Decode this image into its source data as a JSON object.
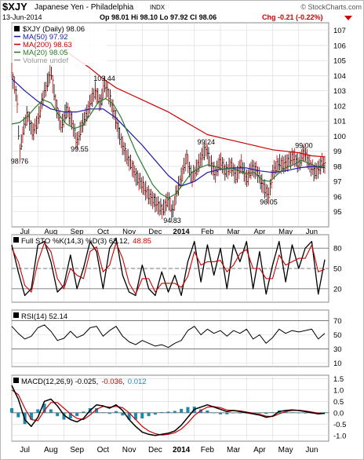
{
  "header": {
    "symbol": "$XJY",
    "name": "Japanese Yen - Philadelphia",
    "exchange": "INDX",
    "source": "© StockCharts.com",
    "date": "13-Jun-2014",
    "ohlc": "Op 98.01  Hi 98.10  Lo 97.92  Cl 98.06",
    "change": "Chg -0.21 (-0.22%)",
    "change_color": "#cc0000"
  },
  "colors": {
    "price": "#000000",
    "ma50": "#1a1aaa",
    "ma200": "#cc0000",
    "ma20": "#2a7a2a",
    "sto_k": "#000000",
    "sto_d": "#cc0000",
    "rsi": "#000000",
    "macd": "#000000",
    "macd_signal": "#cc0000",
    "histogram": "#1f8ab0",
    "grid": "#d8d8d8",
    "panel_border": "#888888"
  },
  "chart_data": [
    {
      "type": "line",
      "panel": "price",
      "title": "$XJY (Daily) 98.06",
      "legend": [
        {
          "name": "$XJY (Daily) 98.06",
          "marker": "black-square"
        },
        {
          "name": "MA(50) 97.92",
          "color": "#1a1aaa"
        },
        {
          "name": "MA(200) 98.63",
          "color": "#cc0000"
        },
        {
          "name": "MA(20) 98.05",
          "color": "#2a7a2a"
        },
        {
          "name": "Volume undef",
          "color": "#999999"
        }
      ],
      "legend_position": "top-left",
      "ylim": [
        94,
        107.5
      ],
      "y_ticks": [
        95,
        96,
        97,
        98,
        99,
        100,
        101,
        102,
        103,
        104,
        105,
        106,
        107
      ],
      "x_labels": [
        "Jul",
        "Aug",
        "Sep",
        "Oct",
        "Nov",
        "Dec",
        "2014",
        "Feb",
        "Mar",
        "Apr",
        "May",
        "Jun"
      ],
      "x_label_pos": [
        0.5,
        1.5,
        2.5,
        3.5,
        4.5,
        5.5,
        6.5,
        7.5,
        8.5,
        9.5,
        10.5,
        11.5
      ],
      "x_range": [
        0,
        12.15
      ],
      "grid": true,
      "annotations": [
        {
          "text": "103.44",
          "x": 3.55,
          "y": 103.44,
          "anchor": "above"
        },
        {
          "text": "98.76",
          "x": 0.3,
          "y": 98.76,
          "anchor": "below"
        },
        {
          "text": "99.55",
          "x": 2.6,
          "y": 99.55,
          "anchor": "below"
        },
        {
          "text": "94.83",
          "x": 6.15,
          "y": 94.83,
          "anchor": "below"
        },
        {
          "text": "99.24",
          "x": 7.45,
          "y": 99.24,
          "anchor": "above"
        },
        {
          "text": "96.05",
          "x": 9.85,
          "y": 96.05,
          "anchor": "below"
        },
        {
          "text": "99.00",
          "x": 11.2,
          "y": 99.0,
          "anchor": "above"
        }
      ],
      "series": [
        {
          "name": "$XJY (Daily) 98.06",
          "key": "price",
          "x": [
            0.0,
            0.2,
            0.3,
            0.45,
            0.6,
            0.8,
            1.0,
            1.2,
            1.5,
            1.7,
            1.9,
            2.1,
            2.3,
            2.5,
            2.7,
            2.9,
            3.0,
            3.2,
            3.4,
            3.55,
            3.75,
            4.0,
            4.2,
            4.4,
            4.6,
            4.8,
            5.0,
            5.2,
            5.4,
            5.6,
            5.8,
            6.0,
            6.15,
            6.3,
            6.5,
            6.7,
            6.9,
            7.1,
            7.3,
            7.45,
            7.6,
            7.8,
            8.0,
            8.2,
            8.4,
            8.6,
            8.8,
            9.0,
            9.2,
            9.4,
            9.6,
            9.85,
            10.0,
            10.2,
            10.4,
            10.6,
            10.8,
            11.0,
            11.2,
            11.4,
            11.6,
            11.75,
            11.9,
            12.0
          ],
          "y": [
            104.2,
            102.5,
            98.76,
            100.5,
            101.5,
            100.2,
            101.0,
            102.6,
            104.3,
            102.0,
            100.6,
            101.8,
            101.0,
            99.55,
            100.8,
            101.6,
            102.2,
            103.0,
            102.1,
            103.44,
            102.6,
            101.0,
            99.6,
            98.7,
            98.0,
            97.2,
            96.8,
            96.2,
            95.8,
            95.4,
            95.1,
            95.9,
            94.83,
            96.2,
            97.3,
            98.6,
            97.2,
            97.9,
            98.7,
            99.24,
            98.3,
            97.5,
            98.4,
            97.6,
            98.1,
            97.3,
            98.2,
            97.1,
            97.9,
            97.7,
            96.8,
            96.05,
            97.6,
            98.2,
            98.1,
            98.3,
            98.7,
            98.1,
            99.0,
            98.2,
            97.6,
            97.8,
            98.3,
            98.06
          ]
        },
        {
          "name": "MA(50) 97.92",
          "key": "ma50",
          "x": [
            0.0,
            0.5,
            1.0,
            1.5,
            2.0,
            2.5,
            3.0,
            3.5,
            4.0,
            4.5,
            5.0,
            5.5,
            6.0,
            6.5,
            7.0,
            7.5,
            8.0,
            8.5,
            9.0,
            9.5,
            10.0,
            10.5,
            11.0,
            11.5,
            12.0
          ],
          "y": [
            103.8,
            103.0,
            102.3,
            101.8,
            101.6,
            101.6,
            101.8,
            101.8,
            101.2,
            100.3,
            99.4,
            98.4,
            97.4,
            96.7,
            97.0,
            97.6,
            97.8,
            97.9,
            97.9,
            97.7,
            97.6,
            97.7,
            97.9,
            98.0,
            97.92
          ]
        },
        {
          "name": "MA(200) 98.63",
          "key": "ma200",
          "x": [
            2.0,
            2.5,
            3.0,
            3.5,
            4.0,
            4.5,
            5.0,
            5.5,
            6.0,
            6.5,
            7.0,
            7.5,
            8.0,
            8.5,
            9.0,
            9.5,
            10.0,
            10.5,
            11.0,
            11.5,
            12.0
          ],
          "y": [
            105.7,
            105.1,
            104.5,
            103.8,
            103.2,
            102.8,
            102.4,
            102.0,
            101.6,
            101.1,
            100.6,
            100.1,
            99.9,
            99.7,
            99.5,
            99.3,
            99.1,
            99.0,
            98.9,
            98.7,
            98.63
          ]
        },
        {
          "name": "MA(20) 98.05",
          "key": "ma20",
          "x": [
            0.0,
            0.3,
            0.6,
            0.9,
            1.2,
            1.5,
            1.8,
            2.1,
            2.4,
            2.7,
            3.0,
            3.3,
            3.6,
            3.9,
            4.2,
            4.5,
            4.8,
            5.1,
            5.4,
            5.7,
            6.0,
            6.3,
            6.6,
            6.9,
            7.2,
            7.5,
            7.8,
            8.1,
            8.4,
            8.7,
            9.0,
            9.3,
            9.6,
            9.9,
            10.2,
            10.5,
            10.8,
            11.1,
            11.4,
            11.7,
            12.0
          ],
          "y": [
            100.8,
            100.9,
            101.3,
            101.9,
            102.4,
            102.2,
            101.4,
            100.8,
            100.5,
            100.7,
            101.4,
            102.2,
            102.5,
            102.1,
            101.2,
            100.0,
            98.8,
            97.8,
            96.8,
            96.2,
            95.9,
            96.2,
            96.9,
            97.6,
            97.9,
            98.1,
            98.0,
            97.8,
            97.9,
            97.7,
            97.5,
            97.6,
            97.1,
            97.0,
            97.5,
            97.9,
            98.1,
            98.4,
            98.2,
            98.0,
            98.05
          ]
        }
      ]
    },
    {
      "type": "line",
      "panel": "sto",
      "title": "Full STO %K(14,3) %D(3) 63.12, 48.85",
      "legend": [
        {
          "name": "Full STO %K(14,3) %D(3) 63.12,",
          "color": "#000000"
        },
        {
          "name": "48.85",
          "color": "#cc0000"
        }
      ],
      "ylim": [
        0,
        100
      ],
      "y_ticks": [
        20,
        50,
        80
      ],
      "ref_lines": [
        20,
        50,
        80
      ],
      "series": [
        {
          "name": "%K",
          "key": "sto_k",
          "x": [
            0.0,
            0.25,
            0.5,
            0.75,
            1.0,
            1.25,
            1.5,
            1.75,
            2.0,
            2.25,
            2.5,
            2.75,
            3.0,
            3.25,
            3.5,
            3.75,
            4.0,
            4.25,
            4.5,
            4.75,
            5.0,
            5.25,
            5.5,
            5.75,
            6.0,
            6.25,
            6.5,
            6.75,
            7.0,
            7.25,
            7.5,
            7.75,
            8.0,
            8.25,
            8.5,
            8.75,
            9.0,
            9.25,
            9.5,
            9.75,
            10.0,
            10.25,
            10.5,
            10.75,
            11.0,
            11.25,
            11.5,
            11.75,
            12.0
          ],
          "y": [
            85,
            45,
            10,
            20,
            85,
            90,
            60,
            15,
            25,
            70,
            20,
            50,
            90,
            75,
            20,
            80,
            95,
            40,
            15,
            10,
            55,
            20,
            10,
            45,
            15,
            40,
            10,
            60,
            90,
            30,
            85,
            40,
            80,
            20,
            85,
            60,
            90,
            20,
            75,
            12,
            55,
            90,
            30,
            85,
            50,
            80,
            90,
            12,
            63.12
          ]
        },
        {
          "name": "%D",
          "key": "sto_d",
          "x": [
            0.0,
            0.25,
            0.5,
            0.75,
            1.0,
            1.25,
            1.5,
            1.75,
            2.0,
            2.25,
            2.5,
            2.75,
            3.0,
            3.25,
            3.5,
            3.75,
            4.0,
            4.25,
            4.5,
            4.75,
            5.0,
            5.25,
            5.5,
            5.75,
            6.0,
            6.25,
            6.5,
            6.75,
            7.0,
            7.25,
            7.5,
            7.75,
            8.0,
            8.25,
            8.5,
            8.75,
            9.0,
            9.25,
            9.5,
            9.75,
            10.0,
            10.25,
            10.5,
            10.75,
            11.0,
            11.25,
            11.5,
            11.75,
            12.0
          ],
          "y": [
            80,
            60,
            25,
            15,
            60,
            88,
            75,
            35,
            20,
            50,
            40,
            35,
            75,
            82,
            45,
            55,
            88,
            65,
            28,
            12,
            35,
            35,
            15,
            28,
            28,
            28,
            22,
            38,
            75,
            55,
            60,
            60,
            62,
            45,
            55,
            72,
            78,
            50,
            50,
            35,
            35,
            70,
            55,
            60,
            65,
            65,
            85,
            45,
            48.85
          ]
        }
      ]
    },
    {
      "type": "line",
      "panel": "rsi",
      "title": "RSI(14) 52.14",
      "legend": [
        {
          "name": "RSI(14) 52.14",
          "color": "#000000"
        }
      ],
      "ylim": [
        5,
        85
      ],
      "y_ticks": [
        10,
        30,
        50,
        70
      ],
      "ref_lines": [
        30,
        70
      ],
      "series": [
        {
          "name": "RSI(14) 52.14",
          "key": "rsi",
          "x": [
            0.0,
            0.25,
            0.5,
            0.75,
            1.0,
            1.25,
            1.5,
            1.75,
            2.0,
            2.25,
            2.5,
            2.75,
            3.0,
            3.25,
            3.5,
            3.75,
            4.0,
            4.25,
            4.5,
            4.75,
            5.0,
            5.25,
            5.5,
            5.75,
            6.0,
            6.25,
            6.5,
            6.75,
            7.0,
            7.25,
            7.5,
            7.75,
            8.0,
            8.25,
            8.5,
            8.75,
            9.0,
            9.25,
            9.5,
            9.75,
            10.0,
            10.25,
            10.5,
            10.75,
            11.0,
            11.25,
            11.5,
            11.75,
            12.0
          ],
          "y": [
            62,
            52,
            44,
            48,
            60,
            64,
            55,
            42,
            45,
            55,
            46,
            50,
            60,
            62,
            48,
            56,
            62,
            48,
            40,
            36,
            42,
            38,
            34,
            36,
            32,
            38,
            42,
            56,
            62,
            50,
            58,
            52,
            56,
            48,
            56,
            52,
            58,
            44,
            50,
            38,
            46,
            58,
            52,
            56,
            54,
            56,
            58,
            44,
            52.14
          ]
        }
      ]
    },
    {
      "type": "line",
      "panel": "macd",
      "title": "MACD(12,26,9) -0.025, -0.036, 0.012",
      "legend": [
        {
          "name": "MACD(12,26,9) -0.025,",
          "color": "#000000"
        },
        {
          "name": "-0.036,",
          "color": "#cc0000"
        },
        {
          "name": "0.012",
          "color": "#1f8ab0"
        }
      ],
      "ylim": [
        -1.25,
        1.65
      ],
      "y_ticks": [
        -1.0,
        -0.5,
        0.0,
        0.5,
        1.0,
        1.5
      ],
      "zero_line": true,
      "series": [
        {
          "name": "MACD",
          "key": "macd",
          "x": [
            0.0,
            0.25,
            0.5,
            0.75,
            1.0,
            1.25,
            1.5,
            1.75,
            2.0,
            2.25,
            2.5,
            2.75,
            3.0,
            3.25,
            3.5,
            3.75,
            4.0,
            4.25,
            4.5,
            4.75,
            5.0,
            5.25,
            5.5,
            5.75,
            6.0,
            6.25,
            6.5,
            6.75,
            7.0,
            7.25,
            7.5,
            7.75,
            8.0,
            8.25,
            8.5,
            8.75,
            9.0,
            9.25,
            9.5,
            9.75,
            10.0,
            10.25,
            10.5,
            10.75,
            11.0,
            11.25,
            11.5,
            11.75,
            12.0
          ],
          "y": [
            1.2,
            0.6,
            -0.3,
            -0.6,
            -0.2,
            0.5,
            0.6,
            0.3,
            -0.1,
            -0.3,
            -0.4,
            -0.25,
            0.1,
            0.35,
            0.3,
            0.2,
            0.35,
            0.1,
            -0.3,
            -0.6,
            -0.85,
            -0.95,
            -1.0,
            -0.95,
            -0.9,
            -0.8,
            -0.55,
            -0.2,
            0.15,
            0.25,
            0.35,
            0.25,
            0.15,
            0.05,
            0.1,
            0.05,
            0.0,
            -0.05,
            -0.1,
            -0.2,
            -0.15,
            0.05,
            0.1,
            0.12,
            0.1,
            0.05,
            0.0,
            -0.05,
            -0.025
          ]
        },
        {
          "name": "Signal",
          "key": "macd_signal",
          "x": [
            0.0,
            0.25,
            0.5,
            0.75,
            1.0,
            1.25,
            1.5,
            1.75,
            2.0,
            2.25,
            2.5,
            2.75,
            3.0,
            3.25,
            3.5,
            3.75,
            4.0,
            4.25,
            4.5,
            4.75,
            5.0,
            5.25,
            5.5,
            5.75,
            6.0,
            6.25,
            6.5,
            6.75,
            7.0,
            7.25,
            7.5,
            7.75,
            8.0,
            8.25,
            8.5,
            8.75,
            9.0,
            9.25,
            9.5,
            9.75,
            10.0,
            10.25,
            10.5,
            10.75,
            11.0,
            11.25,
            11.5,
            11.75,
            12.0
          ],
          "y": [
            1.0,
            0.8,
            0.2,
            -0.3,
            -0.35,
            0.1,
            0.45,
            0.45,
            0.2,
            -0.05,
            -0.25,
            -0.3,
            -0.1,
            0.15,
            0.28,
            0.25,
            0.28,
            0.22,
            0.0,
            -0.3,
            -0.6,
            -0.8,
            -0.92,
            -0.98,
            -0.95,
            -0.88,
            -0.72,
            -0.45,
            -0.12,
            0.1,
            0.25,
            0.27,
            0.22,
            0.12,
            0.1,
            0.08,
            0.03,
            -0.02,
            -0.07,
            -0.15,
            -0.17,
            -0.05,
            0.05,
            0.1,
            0.11,
            0.08,
            0.03,
            -0.02,
            -0.036
          ]
        }
      ]
    }
  ]
}
